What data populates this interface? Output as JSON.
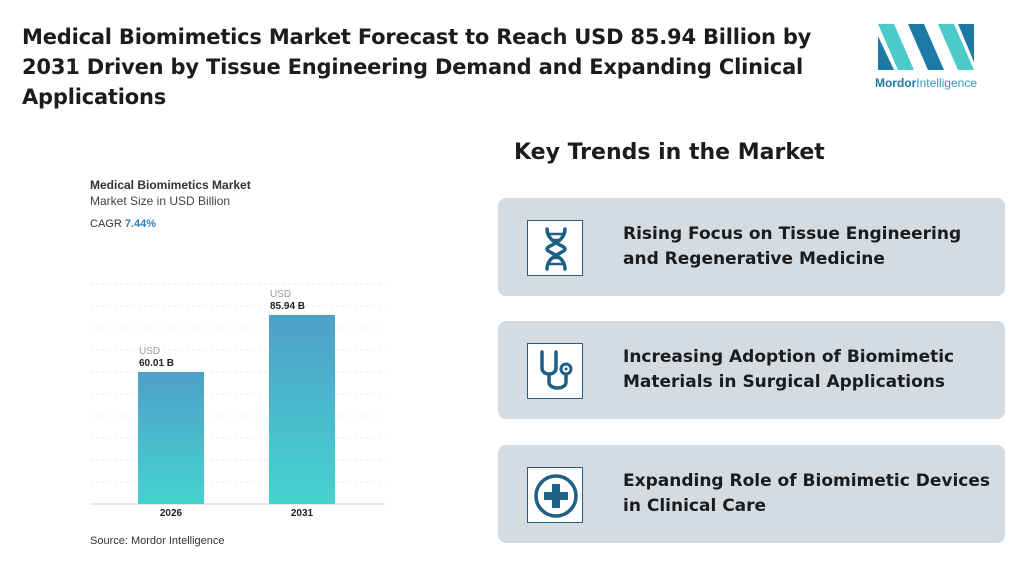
{
  "headline": "Medical Biomimetics Market Forecast to Reach USD 85.94 Billion by 2031 Driven by Tissue Engineering Demand and Expanding Clinical Applications",
  "logo": {
    "word1": "Mordor",
    "word2": "Intelligence",
    "colors": [
      "#4cc9c9",
      "#1d7aa6"
    ]
  },
  "chart": {
    "title": "Medical Biomimetics Market",
    "subtitle": "Market Size in USD Billion",
    "cagr_label": "CAGR",
    "cagr_value": "7.44%",
    "source": "Source: Mordor Intelligence"
  },
  "chart_data": {
    "type": "bar",
    "title": "Medical Biomimetics Market",
    "subtitle": "Market Size in USD Billion",
    "categories": [
      "2026",
      "2031"
    ],
    "values": [
      60.01,
      85.94
    ],
    "value_prefix": "USD",
    "value_labels": [
      "60.01 B",
      "85.94 B"
    ],
    "ylim": [
      0,
      100
    ],
    "grid": true,
    "bar_gradient": [
      "#4fa0c8",
      "#45d3cf"
    ]
  },
  "trends": {
    "title": "Key Trends in the Market",
    "items": [
      {
        "icon": "dna-icon",
        "text": "Rising Focus on Tissue Engineering and Regenerative Medicine"
      },
      {
        "icon": "stethoscope-icon",
        "text": "Increasing Adoption of Biomimetic Materials in Surgical Applications"
      },
      {
        "icon": "medical-cross-icon",
        "text": "Expanding Role of Biomimetic Devices in Clinical Care"
      }
    ]
  }
}
